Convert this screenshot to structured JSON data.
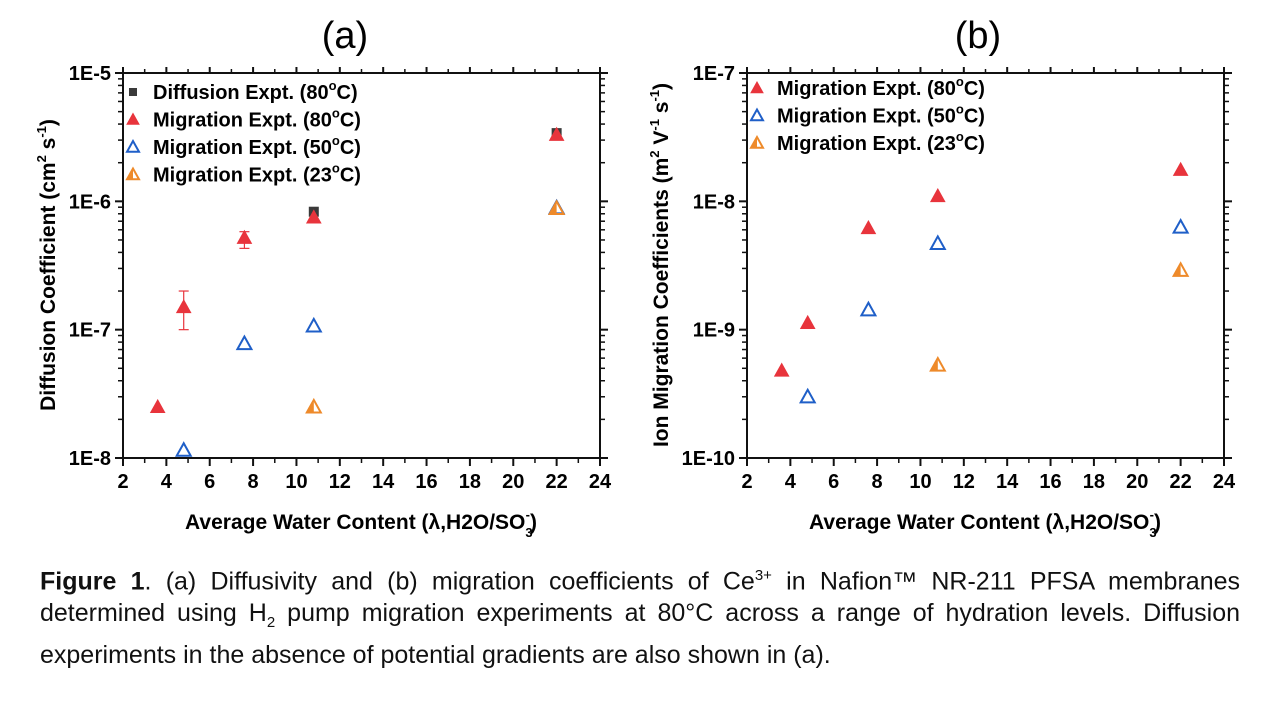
{
  "chart_data": [
    {
      "panel_label": "(a)",
      "type": "scatter",
      "xlabel": "Average Water Content (λ,H2O/SO3-)",
      "xlabel_parts": {
        "main": "Average Water Content (λ,H2O/SO",
        "sub": "3",
        "sup": "-",
        "end": ")"
      },
      "ylabel": "Diffusion Coefficient (cm2 s-1)",
      "ylabel_parts": {
        "main": "Diffusion Coefficient (cm",
        "sup1": "2",
        "mid": " s",
        "sup2": "-1",
        "end": ")"
      },
      "xlim": [
        2,
        24
      ],
      "ylim": [
        1e-08,
        1e-05
      ],
      "yscale": "log",
      "xticks": [
        2,
        4,
        6,
        8,
        10,
        12,
        14,
        16,
        18,
        20,
        22,
        24
      ],
      "xtick_labels": [
        "2",
        "4",
        "6",
        "8",
        "10",
        "12",
        "14",
        "16",
        "18",
        "20",
        "22",
        "24"
      ],
      "yticks": [
        1e-08,
        1e-07,
        1e-06,
        1e-05
      ],
      "ytick_labels": [
        "1E-8",
        "1E-7",
        "1E-6",
        "1E-5"
      ],
      "grid": false,
      "legend_position": "top-left",
      "series": [
        {
          "name": "Diffusion Expt. (80°C)",
          "label_main": "Diffusion Expt. (80",
          "label_sup": "o",
          "label_end": "C)",
          "marker": "square",
          "color": "#3a3a3a",
          "filled": true,
          "x": [
            10.8,
            22.0
          ],
          "y": [
            8.3e-07,
            3.4e-06
          ]
        },
        {
          "name": "Migration Expt. (80°C)",
          "label_main": "Migration Expt. (80",
          "label_sup": "o",
          "label_end": "C)",
          "marker": "triangle",
          "color": "#e8343c",
          "filled": true,
          "x": [
            3.6,
            4.8,
            7.6,
            10.8,
            22.0
          ],
          "y": [
            2.5e-08,
            1.5e-07,
            5.2e-07,
            7.5e-07,
            3.3e-06
          ],
          "yerr_low": [
            null,
            1e-07,
            4.3e-07,
            null,
            null
          ],
          "yerr_high": [
            null,
            2e-07,
            5.8e-07,
            null,
            null
          ]
        },
        {
          "name": "Migration Expt. (50°C)",
          "label_main": "Migration Expt. (50",
          "label_sup": "o",
          "label_end": "C)",
          "marker": "triangle",
          "color": "#1f5fc8",
          "filled": false,
          "x": [
            4.8,
            7.6,
            10.8,
            22.0
          ],
          "y": [
            1.15e-08,
            7.8e-08,
            1.07e-07,
            8.9e-07
          ]
        },
        {
          "name": "Migration Expt. (23°C)",
          "label_main": "Migration Expt. (23",
          "label_sup": "o",
          "label_end": "C)",
          "marker": "triangle-half",
          "color": "#ee8a2a",
          "filled": false,
          "x": [
            10.8,
            22.0
          ],
          "y": [
            2.5e-08,
            8.8e-07
          ]
        }
      ]
    },
    {
      "panel_label": "(b)",
      "type": "scatter",
      "xlabel": "Average Water Content (λ,H2O/SO3-)",
      "xlabel_parts": {
        "main": "Average Water Content (λ,H2O/SO",
        "sub": "3",
        "sup": "-",
        "end": ")"
      },
      "ylabel": "Ion Migration Coefficients (m2 V-1 s-1)",
      "ylabel_parts": {
        "main": "Ion Migration Coefficients (m",
        "sup1": "2",
        "mid": " V",
        "sup2": "-1",
        "mid2": " s",
        "sup3": "-1",
        "end": ")"
      },
      "xlim": [
        2,
        24
      ],
      "ylim": [
        1e-10,
        1e-07
      ],
      "yscale": "log",
      "xticks": [
        2,
        4,
        6,
        8,
        10,
        12,
        14,
        16,
        18,
        20,
        22,
        24
      ],
      "xtick_labels": [
        "2",
        "4",
        "6",
        "8",
        "10",
        "12",
        "14",
        "16",
        "18",
        "20",
        "22",
        "24"
      ],
      "yticks": [
        1e-10,
        1e-09,
        1e-08,
        1e-07
      ],
      "ytick_labels": [
        "1E-10",
        "1E-9",
        "1E-8",
        "1E-7"
      ],
      "grid": false,
      "legend_position": "top-left",
      "series": [
        {
          "name": "Migration Expt. (80°C)",
          "label_main": "Migration Expt. (80",
          "label_sup": "o",
          "label_end": "C)",
          "marker": "triangle",
          "color": "#e8343c",
          "filled": true,
          "x": [
            3.6,
            4.8,
            7.6,
            10.8,
            22.0
          ],
          "y": [
            4.8e-10,
            1.13e-09,
            6.2e-09,
            1.1e-08,
            1.76e-08
          ]
        },
        {
          "name": "Migration Expt. (50°C)",
          "label_main": "Migration Expt. (50",
          "label_sup": "o",
          "label_end": "C)",
          "marker": "triangle",
          "color": "#1f5fc8",
          "filled": false,
          "x": [
            4.8,
            7.6,
            10.8,
            22.0
          ],
          "y": [
            3e-10,
            1.43e-09,
            4.7e-09,
            6.3e-09
          ]
        },
        {
          "name": "Migration Expt. (23°C)",
          "label_main": "Migration Expt. (23",
          "label_sup": "o",
          "label_end": "C)",
          "marker": "triangle-half",
          "color": "#ee8a2a",
          "filled": false,
          "x": [
            10.8,
            22.0
          ],
          "y": [
            5.3e-10,
            2.9e-09
          ]
        }
      ]
    }
  ],
  "caption": {
    "figure_label": "Figure 1",
    "part1": ". (a) Diffusivity and (b) migration coefficients of Ce",
    "ce_sup": "3+",
    "part2": " in Nafion™ NR-211 PFSA membranes determined using H",
    "h_sub": "2",
    "part3": " pump migration experiments at 80°C across a range of hydration levels. Diffusion experiments in the absence of potential gradients are also shown in (a)."
  }
}
